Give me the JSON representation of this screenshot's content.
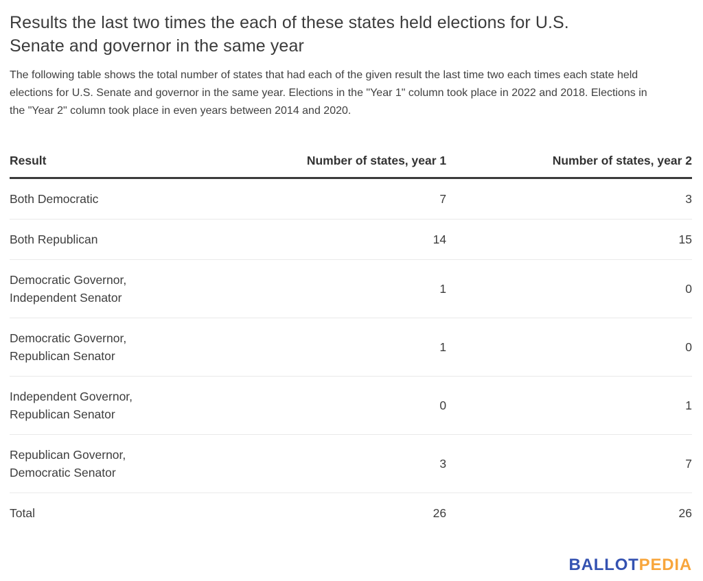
{
  "header": {
    "title": "Results the last two times the each of these states held elections for U.S. Senate and governor in the same year",
    "description": "The following table shows the total number of states that had each of the given result the last time two each times each state held elections for U.S. Senate and governor in the same year. Elections in the \"Year 1\" column took place in 2022 and 2018. Elections in the \"Year 2\" column took place in even years between 2014 and 2020."
  },
  "table": {
    "columns": {
      "result": "Result",
      "year1": "Number of states, year 1",
      "year2": "Number of states, year 2"
    },
    "rows": [
      {
        "result": "Both Democratic",
        "year1": "7",
        "year2": "3"
      },
      {
        "result": "Both Republican",
        "year1": "14",
        "year2": "15"
      },
      {
        "result": "Democratic Governor, Independent Senator",
        "year1": "1",
        "year2": "0"
      },
      {
        "result": "Democratic Governor, Republican Senator",
        "year1": "1",
        "year2": "0"
      },
      {
        "result": "Independent Governor, Republican Senator",
        "year1": "0",
        "year2": "1"
      },
      {
        "result": "Republican Governor, Democratic Senator",
        "year1": "3",
        "year2": "7"
      },
      {
        "result": "Total",
        "year1": "26",
        "year2": "26"
      }
    ]
  },
  "footer": {
    "logo_primary": "BALLOT",
    "logo_secondary": "PEDIA"
  },
  "colors": {
    "logo_primary": "#3452b1",
    "logo_secondary": "#f8a63c",
    "text": "#3d3d3d",
    "header_rule": "#3a3a3a",
    "row_rule": "#e9e9e9",
    "background": "#ffffff"
  },
  "chart_data": {
    "type": "table",
    "title": "Results the last two times the each of these states held elections for U.S. Senate and governor in the same year",
    "subtitle": "The following table shows the total number of states that had each of the given result the last time two each times each state held elections for U.S. Senate and governor in the same year. Elections in the \"Year 1\" column took place in 2022 and 2018. Elections in the \"Year 2\" column took place in even years between 2014 and 2020.",
    "columns": [
      "Result",
      "Number of states, year 1",
      "Number of states, year 2"
    ],
    "rows": [
      [
        "Both Democratic",
        7,
        3
      ],
      [
        "Both Republican",
        14,
        15
      ],
      [
        "Democratic Governor, Independent Senator",
        1,
        0
      ],
      [
        "Democratic Governor, Republican Senator",
        1,
        0
      ],
      [
        "Independent Governor, Republican Senator",
        0,
        1
      ],
      [
        "Republican Governor, Democratic Senator",
        3,
        7
      ],
      [
        "Total",
        26,
        26
      ]
    ]
  }
}
